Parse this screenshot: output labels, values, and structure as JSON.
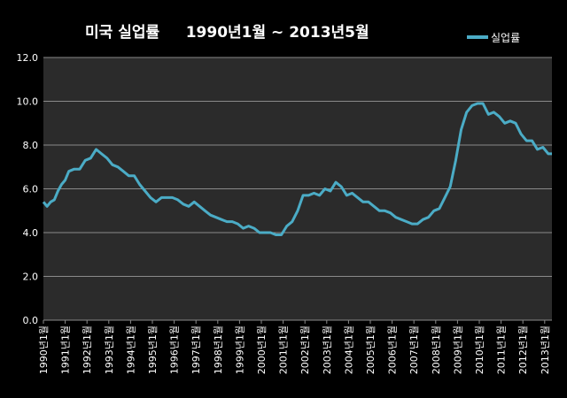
{
  "chart_data": {
    "type": "line",
    "title": "미국 실업률     1990년1월 ~ 2013년5월",
    "xlabel": "",
    "ylabel": "",
    "ylim": [
      0,
      12
    ],
    "yticks": [
      "0.0",
      "2.0",
      "4.0",
      "6.0",
      "8.0",
      "10.0",
      "12.0"
    ],
    "xticks": [
      "1990년1월",
      "1991년1월",
      "1992년1월",
      "1993년1월",
      "1994년1월",
      "1995년1월",
      "1996년1월",
      "1997년1월",
      "1998년1월",
      "1999년1월",
      "2000년1월",
      "2001년1월",
      "2002년1월",
      "2003년1월",
      "2004년1월",
      "2005년1월",
      "2006년1월",
      "2007년1월",
      "2008년1월",
      "2009년1월",
      "2010년1월",
      "2011년1월",
      "2012년1월",
      "2013년1월"
    ],
    "x_range": [
      "1990-01",
      "2013-05"
    ],
    "grid": true,
    "legend_position": "top-right",
    "series": [
      {
        "name": "실업률",
        "color": "#4bacc6",
        "x": [
          "1990-01",
          "1990-03",
          "1990-05",
          "1990-07",
          "1990-09",
          "1990-11",
          "1991-01",
          "1991-03",
          "1991-06",
          "1991-09",
          "1991-12",
          "1992-03",
          "1992-06",
          "1992-09",
          "1992-12",
          "1993-03",
          "1993-06",
          "1993-09",
          "1993-12",
          "1994-03",
          "1994-06",
          "1994-09",
          "1994-12",
          "1995-03",
          "1995-06",
          "1995-09",
          "1995-12",
          "1996-03",
          "1996-06",
          "1996-09",
          "1996-12",
          "1997-03",
          "1997-06",
          "1997-09",
          "1997-12",
          "1998-03",
          "1998-06",
          "1998-09",
          "1998-12",
          "1999-03",
          "1999-06",
          "1999-09",
          "1999-12",
          "2000-03",
          "2000-06",
          "2000-09",
          "2000-12",
          "2001-03",
          "2001-06",
          "2001-09",
          "2001-12",
          "2002-03",
          "2002-06",
          "2002-09",
          "2002-12",
          "2003-03",
          "2003-06",
          "2003-09",
          "2003-12",
          "2004-03",
          "2004-06",
          "2004-09",
          "2004-12",
          "2005-03",
          "2005-06",
          "2005-09",
          "2005-12",
          "2006-03",
          "2006-06",
          "2006-09",
          "2006-12",
          "2007-03",
          "2007-06",
          "2007-09",
          "2007-12",
          "2008-03",
          "2008-06",
          "2008-09",
          "2008-12",
          "2009-03",
          "2009-06",
          "2009-09",
          "2009-12",
          "2010-03",
          "2010-06",
          "2010-09",
          "2010-12",
          "2011-03",
          "2011-06",
          "2011-09",
          "2011-12",
          "2012-03",
          "2012-06",
          "2012-09",
          "2012-12",
          "2013-03",
          "2013-05"
        ],
        "values": [
          5.4,
          5.2,
          5.4,
          5.5,
          5.9,
          6.2,
          6.4,
          6.8,
          6.9,
          6.9,
          7.3,
          7.4,
          7.8,
          7.6,
          7.4,
          7.1,
          7.0,
          6.8,
          6.6,
          6.6,
          6.2,
          5.9,
          5.6,
          5.4,
          5.6,
          5.6,
          5.6,
          5.5,
          5.3,
          5.2,
          5.4,
          5.2,
          5.0,
          4.8,
          4.7,
          4.6,
          4.5,
          4.5,
          4.4,
          4.2,
          4.3,
          4.2,
          4.0,
          4.0,
          4.0,
          3.9,
          3.9,
          4.3,
          4.5,
          5.0,
          5.7,
          5.7,
          5.8,
          5.7,
          6.0,
          5.9,
          6.3,
          6.1,
          5.7,
          5.8,
          5.6,
          5.4,
          5.4,
          5.2,
          5.0,
          5.0,
          4.9,
          4.7,
          4.6,
          4.5,
          4.4,
          4.4,
          4.6,
          4.7,
          5.0,
          5.1,
          5.6,
          6.1,
          7.3,
          8.7,
          9.5,
          9.8,
          9.9,
          9.9,
          9.4,
          9.5,
          9.3,
          9.0,
          9.1,
          9.0,
          8.5,
          8.2,
          8.2,
          7.8,
          7.9,
          7.6,
          7.6
        ]
      }
    ]
  }
}
